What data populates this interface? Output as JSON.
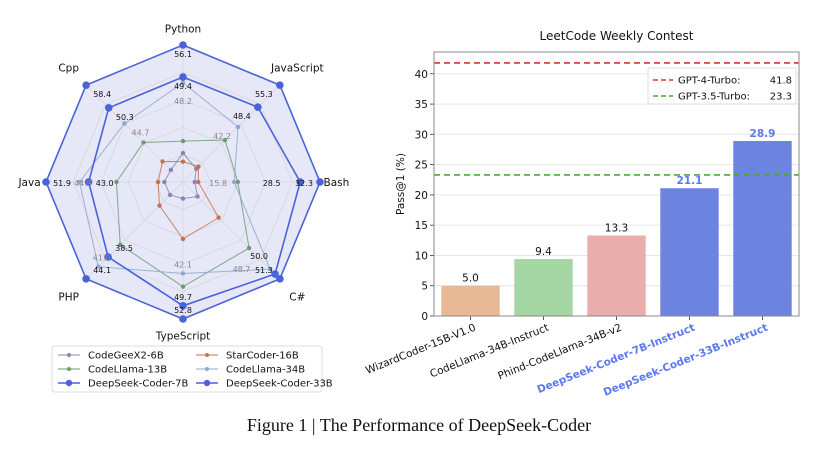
{
  "caption": "Figure 1 | The Performance of DeepSeek-Coder",
  "chart_data": [
    {
      "type": "radar",
      "axes": [
        "Python",
        "JavaScript",
        "Bash",
        "C#",
        "TypeScript",
        "PHP",
        "Java",
        "Cpp"
      ],
      "legend_position": "bottom",
      "series": [
        {
          "name": "CodeGeeX2-6B",
          "color": "#8a84ad",
          "values": [
            33.5,
            29.1,
            8.2,
            29.1,
            24.5,
            22.7,
            27.2,
            28.1
          ],
          "labeled": false
        },
        {
          "name": "StarCoder-16B",
          "color": "#c9714f",
          "values": [
            31.7,
            29.8,
            8.9,
            34.8,
            34.0,
            25.4,
            28.5,
            31.1
          ],
          "labeled": false
        },
        {
          "name": "CodeLlama-13B",
          "color": "#6e9a73",
          "values": [
            36.0,
            38.1,
            16.5,
            43.0,
            45.2,
            35.4,
            37.2,
            37.9
          ],
          "labeled": false
        },
        {
          "name": "CodeLlama-34B",
          "color": "#8ea6cc",
          "values": [
            48.2,
            42.2,
            15.8,
            48.7,
            42.1,
            41.0,
            44.9,
            44.7
          ],
          "labeled": true,
          "label_color": "#888888"
        },
        {
          "name": "DeepSeek-Coder-7B",
          "color": "#4a63d8",
          "values": [
            49.4,
            48.4,
            28.5,
            50.0,
            49.7,
            38.5,
            43.0,
            50.3
          ],
          "labeled": true,
          "label_color": "#111111"
        },
        {
          "name": "DeepSeek-Coder-33B",
          "color": "#4a63d8",
          "fill": "#e6e8f8",
          "values": [
            56.1,
            55.3,
            32.3,
            51.3,
            52.8,
            44.1,
            51.9,
            58.4
          ],
          "labeled": true,
          "label_color": "#111111"
        }
      ],
      "value_labels": [
        [
          "48.2",
          "42.2",
          "15.8",
          "48.7",
          "42.1",
          "41.0",
          "44.9",
          "44.7"
        ],
        [
          "49.4",
          "48.4",
          "28.5",
          "50.0",
          "49.7",
          "38.5",
          "43.0",
          "50.3"
        ],
        [
          "56.1",
          "55.3",
          "32.3",
          "51.3",
          "52.8",
          "44.1",
          "51.9",
          "58.4"
        ]
      ]
    },
    {
      "type": "bar",
      "title": "LeetCode Weekly Contest",
      "ylabel": "Pass@1 (%)",
      "xlabel": "",
      "ylim": [
        0,
        43.6
      ],
      "yticks": [
        "0",
        "5",
        "10",
        "15",
        "20",
        "25",
        "30",
        "35",
        "40"
      ],
      "grid": "horizontal",
      "categories": [
        "WizardCoder-15B-V1.0",
        "CodeLlama-34B-Instruct",
        "Phind-CodeLlama-34B-v2",
        "DeepSeek-Coder-7B-Instruct",
        "DeepSeek-Coder-33B-Instruct"
      ],
      "values": [
        5.0,
        9.4,
        13.3,
        21.1,
        28.9
      ],
      "value_labels": [
        "5.0",
        "9.4",
        "13.3",
        "21.1",
        "28.9"
      ],
      "colors": [
        "#e8b894",
        "#a3d6a3",
        "#e9adab",
        "#6c83e0",
        "#6c83e0"
      ],
      "highlight_color": "#5b78f0",
      "highlighted": [
        false,
        false,
        false,
        true,
        true
      ],
      "reference_lines": [
        {
          "name": "GPT-4-Turbo:",
          "value": 41.8,
          "value_label": "41.8",
          "color": "#d9342b"
        },
        {
          "name": "GPT-3.5-Turbo:",
          "value": 23.3,
          "value_label": "23.3",
          "color": "#4aa832"
        }
      ],
      "legend_position": "top-right"
    }
  ]
}
